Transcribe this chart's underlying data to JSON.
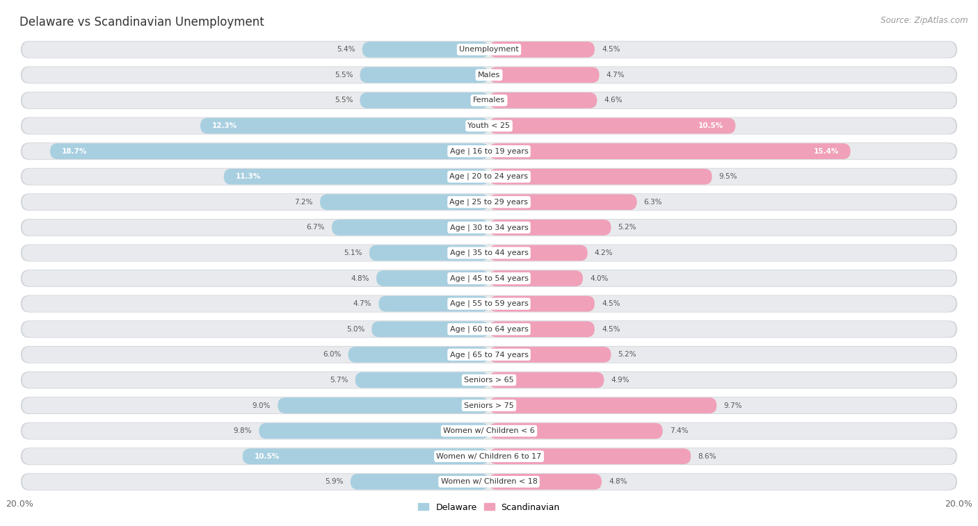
{
  "title": "Delaware vs Scandinavian Unemployment",
  "source": "Source: ZipAtlas.com",
  "categories": [
    "Unemployment",
    "Males",
    "Females",
    "Youth < 25",
    "Age | 16 to 19 years",
    "Age | 20 to 24 years",
    "Age | 25 to 29 years",
    "Age | 30 to 34 years",
    "Age | 35 to 44 years",
    "Age | 45 to 54 years",
    "Age | 55 to 59 years",
    "Age | 60 to 64 years",
    "Age | 65 to 74 years",
    "Seniors > 65",
    "Seniors > 75",
    "Women w/ Children < 6",
    "Women w/ Children 6 to 17",
    "Women w/ Children < 18"
  ],
  "delaware": [
    5.4,
    5.5,
    5.5,
    12.3,
    18.7,
    11.3,
    7.2,
    6.7,
    5.1,
    4.8,
    4.7,
    5.0,
    6.0,
    5.7,
    9.0,
    9.8,
    10.5,
    5.9
  ],
  "scandinavian": [
    4.5,
    4.7,
    4.6,
    10.5,
    15.4,
    9.5,
    6.3,
    5.2,
    4.2,
    4.0,
    4.5,
    4.5,
    5.2,
    4.9,
    9.7,
    7.4,
    8.6,
    4.8
  ],
  "delaware_color": "#a8cfe0",
  "scandinavian_color": "#f0a0b8",
  "delaware_highlight_color": "#5b9dc9",
  "scandinavian_highlight_color": "#e8789a",
  "bg_color": "#ffffff",
  "row_bg_color": "#e8eaed",
  "row_shadow_color": "#d0d3d8",
  "max_val": 20.0,
  "legend_delaware": "Delaware",
  "legend_scandinavian": "Scandinavian",
  "title_fontsize": 12,
  "source_fontsize": 8.5,
  "label_fontsize": 8,
  "value_fontsize": 7.5,
  "legend_fontsize": 9
}
